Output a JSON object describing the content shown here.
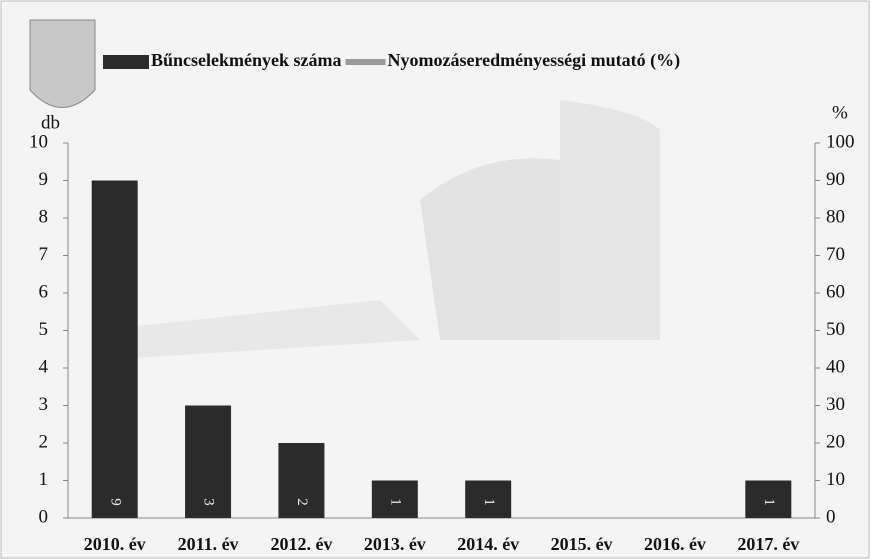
{
  "chart_data": {
    "type": "bar",
    "categories": [
      "2010. év",
      "2011. év",
      "2012. év",
      "2013. év",
      "2014. év",
      "2015. év",
      "2016. év",
      "2017. év"
    ],
    "series": [
      {
        "name": "Bűncselekmények száma",
        "color": "#2b2b2b",
        "values": [
          9,
          3,
          2,
          1,
          1,
          0,
          0,
          1
        ]
      },
      {
        "name": "Nyomozáseredményességi mutató (%)",
        "color": "#9a9a9a",
        "axis": "y2",
        "values": [
          null,
          null,
          null,
          null,
          null,
          null,
          null,
          null
        ]
      }
    ],
    "y_label": "db",
    "y2_label": "%",
    "ylim": [
      0,
      10
    ],
    "yticks": [
      0,
      1,
      2,
      3,
      4,
      5,
      6,
      7,
      8,
      9,
      10
    ],
    "y2lim": [
      0,
      100
    ],
    "y2ticks": [
      0,
      10,
      20,
      30,
      40,
      50,
      60,
      70,
      80,
      90,
      100
    ]
  }
}
